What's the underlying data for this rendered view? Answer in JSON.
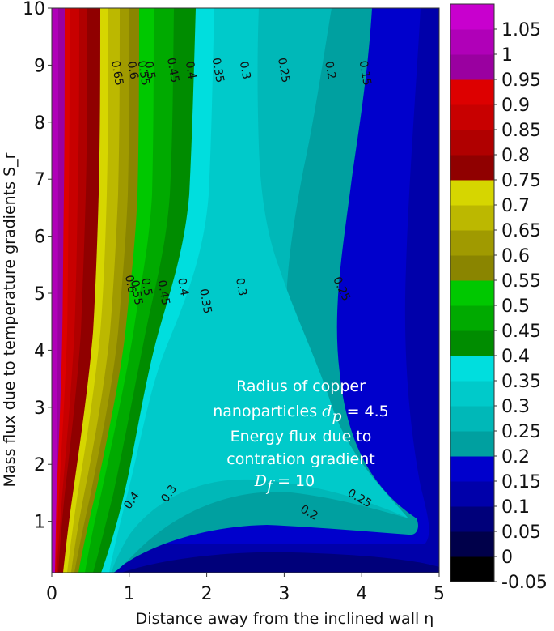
{
  "chart_data": {
    "type": "contour",
    "xlabel": "Distance away from the inclined wall η",
    "ylabel": "Mass flux due to temperature gradients S_r",
    "xlim": [
      0,
      5
    ],
    "ylim": [
      0.1,
      10
    ],
    "x_ticks": [
      "0",
      "1",
      "2",
      "3",
      "4",
      "5"
    ],
    "y_ticks": [
      "1",
      "2",
      "3",
      "4",
      "5",
      "6",
      "7",
      "8",
      "9",
      "10"
    ],
    "x_tick_values": [
      0,
      1,
      2,
      3,
      4,
      5
    ],
    "y_tick_values": [
      1,
      2,
      3,
      4,
      5,
      6,
      7,
      8,
      9,
      10
    ],
    "colorbar": {
      "levels": [
        -0.05,
        0,
        0.05,
        0.1,
        0.15,
        0.2,
        0.25,
        0.3,
        0.35,
        0.4,
        0.45,
        0.5,
        0.55,
        0.6,
        0.65,
        0.7,
        0.75,
        0.8,
        0.85,
        0.9,
        0.95,
        1,
        1.05,
        1.1
      ],
      "tick_labels": [
        "-0.05",
        "0",
        "0.05",
        "0.1",
        "0.15",
        "0.2",
        "0.25",
        "0.3",
        "0.35",
        "0.4",
        "0.45",
        "0.5",
        "0.55",
        "0.6",
        "0.65",
        "0.7",
        "0.75",
        "0.8",
        "0.85",
        "0.9",
        "0.95",
        "1",
        "1.05"
      ],
      "band_colors": [
        "#000000",
        "#00004a",
        "#00007a",
        "#0000aa",
        "#0000cc",
        "#00a0a0",
        "#00b8b8",
        "#00caca",
        "#00dede",
        "#008c00",
        "#00aa00",
        "#00c800",
        "#8a8500",
        "#a09a00",
        "#bcb800",
        "#d6d600",
        "#900000",
        "#b00000",
        "#c80000",
        "#dd0000",
        "#9a00a0",
        "#b000b8",
        "#c800ce",
        "#e400e8"
      ]
    },
    "contour_labels": [
      {
        "text": "0.65",
        "x": 0.8,
        "y": 8.85
      },
      {
        "text": "0.6",
        "x": 1.0,
        "y": 8.9
      },
      {
        "text": "0.55",
        "x": 1.14,
        "y": 8.85
      },
      {
        "text": "0.5",
        "x": 1.22,
        "y": 8.9
      },
      {
        "text": "0.45",
        "x": 1.52,
        "y": 8.9
      },
      {
        "text": "0.4",
        "x": 1.75,
        "y": 8.9
      },
      {
        "text": "0.35",
        "x": 2.1,
        "y": 8.9
      },
      {
        "text": "0.3",
        "x": 2.45,
        "y": 8.9
      },
      {
        "text": "0.25",
        "x": 2.95,
        "y": 8.9
      },
      {
        "text": "0.2",
        "x": 3.55,
        "y": 8.9
      },
      {
        "text": "0.15",
        "x": 4.0,
        "y": 8.85
      },
      {
        "text": "0.6",
        "x": 0.97,
        "y": 5.15
      },
      {
        "text": "0.55",
        "x": 1.05,
        "y": 5.0
      },
      {
        "text": "0.5",
        "x": 1.18,
        "y": 5.1
      },
      {
        "text": "0.45",
        "x": 1.4,
        "y": 5.0
      },
      {
        "text": "0.4",
        "x": 1.65,
        "y": 5.1
      },
      {
        "text": "0.35",
        "x": 1.94,
        "y": 4.85
      },
      {
        "text": "0.3",
        "x": 2.4,
        "y": 5.1
      },
      {
        "text": "0.25",
        "x": 3.7,
        "y": 5.05
      },
      {
        "text": "0.4",
        "x": 1.07,
        "y": 1.33
      },
      {
        "text": "0.3",
        "x": 1.55,
        "y": 1.45
      },
      {
        "text": "0.2",
        "x": 3.3,
        "y": 1.1
      },
      {
        "text": "0.25",
        "x": 3.95,
        "y": 1.35
      }
    ],
    "annotation": {
      "line1": "Radius of copper",
      "line2_text": "nanoparticles ",
      "line2_math": "d",
      "line2_sub": "p",
      "line2_rest": " = 4.5",
      "line3": "Energy flux due to",
      "line4": "contration gradient",
      "line5_math": "D",
      "line5_sub": "f",
      "line5_rest": " = 10"
    },
    "grid": false
  }
}
